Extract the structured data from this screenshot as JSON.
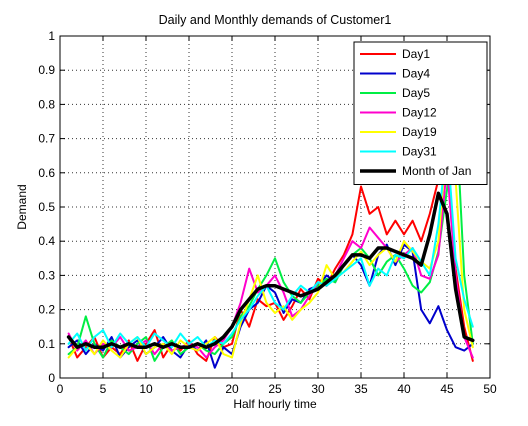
{
  "chart_data": {
    "type": "line",
    "title": "Daily and Monthly demands of Customer1",
    "xlabel": "Half hourly time",
    "ylabel": "Demand",
    "xlim": [
      0,
      50
    ],
    "ylim": [
      0,
      1
    ],
    "xticks": [
      "0",
      "5",
      "10",
      "15",
      "20",
      "25",
      "30",
      "35",
      "40",
      "45",
      "50"
    ],
    "yticks": [
      "0",
      "0.1",
      "0.2",
      "0.3",
      "0.4",
      "0.5",
      "0.6",
      "0.7",
      "0.8",
      "0.9",
      "1"
    ],
    "grid": true,
    "legend_position": "top-right",
    "x": [
      1,
      2,
      3,
      4,
      5,
      6,
      7,
      8,
      9,
      10,
      11,
      12,
      13,
      14,
      15,
      16,
      17,
      18,
      19,
      20,
      21,
      22,
      23,
      24,
      25,
      26,
      27,
      28,
      29,
      30,
      31,
      32,
      33,
      34,
      35,
      36,
      37,
      38,
      39,
      40,
      41,
      42,
      43,
      44,
      45,
      46,
      47,
      48
    ],
    "series": [
      {
        "name": "Day1",
        "color": "#ff0000",
        "width": 2,
        "values": [
          0.12,
          0.06,
          0.09,
          0.12,
          0.06,
          0.09,
          0.07,
          0.11,
          0.05,
          0.1,
          0.14,
          0.06,
          0.1,
          0.08,
          0.11,
          0.07,
          0.05,
          0.12,
          0.09,
          0.1,
          0.2,
          0.15,
          0.23,
          0.21,
          0.22,
          0.17,
          0.21,
          0.26,
          0.23,
          0.29,
          0.27,
          0.32,
          0.36,
          0.42,
          0.56,
          0.48,
          0.5,
          0.42,
          0.46,
          0.42,
          0.46,
          0.4,
          0.48,
          0.58,
          0.7,
          0.32,
          0.15,
          0.05
        ]
      },
      {
        "name": "Day4",
        "color": "#0000cc",
        "width": 2,
        "values": [
          0.09,
          0.11,
          0.07,
          0.1,
          0.08,
          0.12,
          0.06,
          0.09,
          0.11,
          0.07,
          0.09,
          0.12,
          0.08,
          0.06,
          0.1,
          0.08,
          0.11,
          0.03,
          0.09,
          0.07,
          0.15,
          0.2,
          0.22,
          0.27,
          0.25,
          0.19,
          0.23,
          0.22,
          0.26,
          0.27,
          0.3,
          0.28,
          0.33,
          0.36,
          0.33,
          0.27,
          0.36,
          0.39,
          0.33,
          0.39,
          0.37,
          0.2,
          0.16,
          0.21,
          0.14,
          0.09,
          0.08,
          0.1
        ]
      },
      {
        "name": "Day5",
        "color": "#00ee44",
        "width": 2,
        "values": [
          0.07,
          0.09,
          0.18,
          0.1,
          0.06,
          0.11,
          0.09,
          0.07,
          0.1,
          0.12,
          0.05,
          0.09,
          0.11,
          0.07,
          0.09,
          0.1,
          0.08,
          0.07,
          0.1,
          0.12,
          0.18,
          0.21,
          0.26,
          0.3,
          0.35,
          0.28,
          0.24,
          0.22,
          0.25,
          0.27,
          0.29,
          0.28,
          0.33,
          0.36,
          0.38,
          0.35,
          0.3,
          0.34,
          0.36,
          0.32,
          0.27,
          0.25,
          0.28,
          0.37,
          0.55,
          0.8,
          0.3,
          0.1
        ]
      },
      {
        "name": "Day12",
        "color": "#ff00cc",
        "width": 2,
        "values": [
          0.13,
          0.08,
          0.11,
          0.07,
          0.1,
          0.09,
          0.12,
          0.08,
          0.09,
          0.11,
          0.07,
          0.1,
          0.08,
          0.09,
          0.1,
          0.09,
          0.06,
          0.09,
          0.11,
          0.15,
          0.22,
          0.32,
          0.25,
          0.27,
          0.3,
          0.25,
          0.18,
          0.2,
          0.24,
          0.28,
          0.27,
          0.3,
          0.35,
          0.4,
          0.38,
          0.44,
          0.41,
          0.38,
          0.34,
          0.36,
          0.38,
          0.3,
          0.29,
          0.36,
          0.62,
          0.3,
          0.12,
          0.06
        ]
      },
      {
        "name": "Day19",
        "color": "#ffff00",
        "width": 2,
        "values": [
          0.06,
          0.09,
          0.1,
          0.07,
          0.11,
          0.08,
          0.06,
          0.1,
          0.12,
          0.07,
          0.09,
          0.1,
          0.07,
          0.11,
          0.09,
          0.08,
          0.1,
          0.12,
          0.07,
          0.06,
          0.16,
          0.23,
          0.3,
          0.22,
          0.19,
          0.21,
          0.17,
          0.2,
          0.22,
          0.25,
          0.33,
          0.29,
          0.31,
          0.34,
          0.37,
          0.33,
          0.36,
          0.38,
          0.34,
          0.4,
          0.37,
          0.34,
          0.32,
          0.4,
          0.7,
          0.58,
          0.2,
          0.09
        ]
      },
      {
        "name": "Day31",
        "color": "#00ffff",
        "width": 2,
        "values": [
          0.1,
          0.13,
          0.08,
          0.12,
          0.14,
          0.09,
          0.13,
          0.1,
          0.12,
          0.09,
          0.13,
          0.11,
          0.09,
          0.13,
          0.1,
          0.12,
          0.09,
          0.11,
          0.1,
          0.13,
          0.17,
          0.2,
          0.24,
          0.27,
          0.22,
          0.2,
          0.24,
          0.27,
          0.25,
          0.28,
          0.27,
          0.29,
          0.31,
          0.33,
          0.35,
          0.27,
          0.32,
          0.3,
          0.36,
          0.35,
          0.38,
          0.34,
          0.3,
          0.45,
          0.7,
          0.35,
          0.23,
          0.15
        ]
      },
      {
        "name": "Month of Jan",
        "color": "#000000",
        "width": 3.5,
        "values": [
          0.12,
          0.09,
          0.1,
          0.09,
          0.09,
          0.1,
          0.09,
          0.1,
          0.09,
          0.09,
          0.1,
          0.09,
          0.1,
          0.09,
          0.09,
          0.1,
          0.09,
          0.1,
          0.12,
          0.15,
          0.2,
          0.23,
          0.26,
          0.27,
          0.27,
          0.26,
          0.25,
          0.24,
          0.25,
          0.26,
          0.28,
          0.3,
          0.33,
          0.36,
          0.36,
          0.35,
          0.38,
          0.38,
          0.37,
          0.36,
          0.35,
          0.33,
          0.42,
          0.54,
          0.48,
          0.26,
          0.12,
          0.11
        ]
      }
    ]
  }
}
